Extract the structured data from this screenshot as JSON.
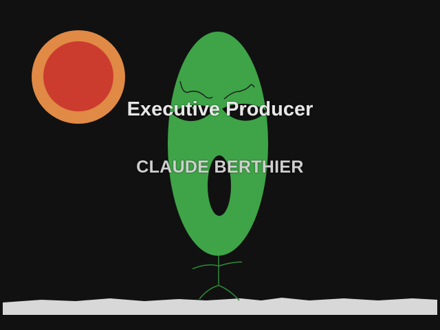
{
  "credits": {
    "role": "Executive Producer",
    "name": "CLAUDE BERTHIER"
  },
  "colors": {
    "background": "#111111",
    "sun_ring": "#e08a45",
    "sun_core": "#cc3c2e",
    "creature_body": "#3ea447",
    "creature_features": "#111111",
    "creature_lines": "#2f8a3a",
    "ground": "#d8d8d8",
    "role_text": "#e7e7e7",
    "name_text": "#cfcfcf"
  },
  "icons": {
    "sun": "sun-icon",
    "creature": "green-oval-creature-icon"
  }
}
